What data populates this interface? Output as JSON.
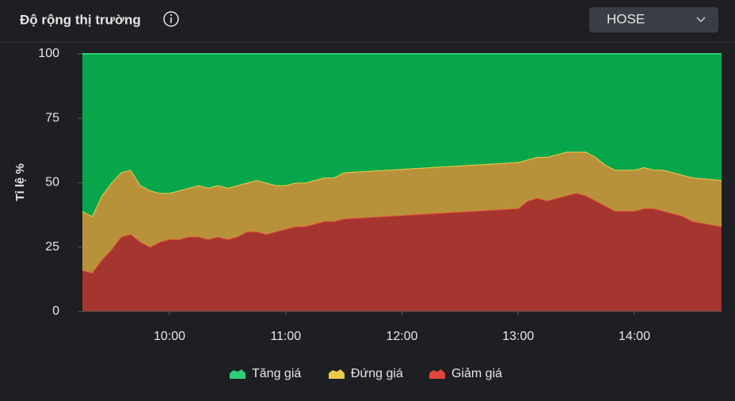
{
  "header": {
    "title": "Độ rộng thị trường",
    "selector": "HOSE"
  },
  "chart_data": {
    "type": "area",
    "stacked": true,
    "ylabel": "Tỉ lệ %",
    "legend_position": "bottom",
    "x": [
      555,
      560,
      565,
      570,
      575,
      580,
      585,
      590,
      595,
      600,
      605,
      610,
      615,
      620,
      625,
      630,
      635,
      640,
      645,
      650,
      655,
      660,
      665,
      670,
      675,
      680,
      685,
      690,
      780,
      785,
      790,
      795,
      800,
      805,
      810,
      815,
      820,
      825,
      830,
      835,
      840,
      845,
      850,
      855,
      860,
      865,
      870,
      885
    ],
    "xlim": [
      555,
      885
    ],
    "xticks": [
      {
        "value": 600,
        "label": "10:00"
      },
      {
        "value": 660,
        "label": "11:00"
      },
      {
        "value": 720,
        "label": "12:00"
      },
      {
        "value": 780,
        "label": "13:00"
      },
      {
        "value": 840,
        "label": "14:00"
      }
    ],
    "ylim": [
      0,
      100
    ],
    "yticks": [
      0,
      25,
      50,
      75,
      100
    ],
    "series": [
      {
        "name": "Tăng giá",
        "color": "#07a64b",
        "line_color": "#2fcf74",
        "values": [
          61,
          63,
          55,
          50,
          46,
          45,
          51,
          53,
          54,
          54,
          53,
          52,
          51,
          52,
          51,
          52,
          51,
          50,
          49,
          50,
          51,
          51,
          50,
          50,
          49,
          48,
          48,
          46,
          42,
          41,
          40,
          40,
          39,
          38,
          38,
          38,
          40,
          43,
          45,
          45,
          45,
          44,
          45,
          45,
          46,
          47,
          48,
          49
        ]
      },
      {
        "name": "Đứng giá",
        "color": "#b8923a",
        "line_color": "#ebcb4b",
        "values": [
          23,
          22,
          25,
          26,
          25,
          25,
          22,
          22,
          19,
          18,
          19,
          19,
          20,
          20,
          20,
          20,
          20,
          19,
          20,
          20,
          18,
          17,
          17,
          17,
          17,
          17,
          17,
          18,
          18,
          16,
          16,
          17,
          17,
          17,
          16,
          17,
          17,
          16,
          16,
          16,
          16,
          16,
          15,
          16,
          16,
          16,
          17,
          18
        ]
      },
      {
        "name": "Giảm giá",
        "color": "#a5352f",
        "line_color": "#e2453c",
        "values": [
          16,
          15,
          20,
          24,
          29,
          30,
          27,
          25,
          27,
          28,
          28,
          29,
          29,
          28,
          29,
          28,
          29,
          31,
          31,
          30,
          31,
          32,
          33,
          33,
          34,
          35,
          35,
          36,
          40,
          43,
          44,
          43,
          44,
          45,
          46,
          45,
          43,
          41,
          39,
          39,
          39,
          40,
          40,
          39,
          38,
          37,
          35,
          33
        ]
      }
    ]
  }
}
